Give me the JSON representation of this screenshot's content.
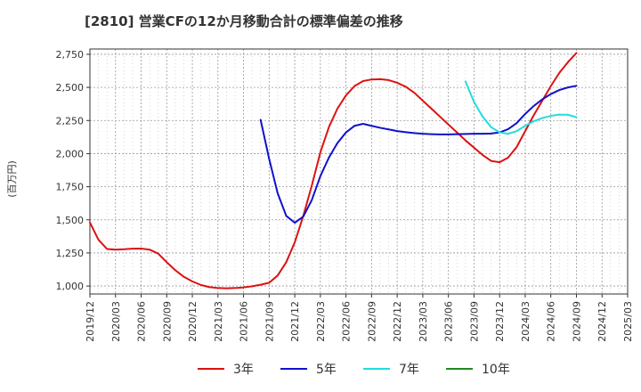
{
  "chart_data": {
    "type": "line",
    "title": "[2810]  営業CFの12か月移動合計の標準偏差の推移",
    "ylabel": "(百万円)",
    "xlabel": "",
    "ylim": [
      940,
      2790
    ],
    "yticks": [
      1000,
      1250,
      1500,
      1750,
      2000,
      2250,
      2500,
      2750
    ],
    "ytick_labels": [
      "1,000",
      "1,250",
      "1,500",
      "1,750",
      "2,000",
      "2,250",
      "2,500",
      "2,750"
    ],
    "x_range": [
      "2019-12",
      "2025-03"
    ],
    "x_ticks": [
      "2019/12",
      "2020/03",
      "2020/06",
      "2020/09",
      "2020/12",
      "2021/03",
      "2021/06",
      "2021/09",
      "2021/12",
      "2022/03",
      "2022/06",
      "2022/09",
      "2022/12",
      "2023/03",
      "2023/06",
      "2023/09",
      "2023/12",
      "2024/03",
      "2024/06",
      "2024/09",
      "2024/12",
      "2025/03"
    ],
    "grid": true,
    "legend": "bottom",
    "series": [
      {
        "name": "3年",
        "color": "#dd1111",
        "points": [
          [
            "2019-12",
            1480
          ],
          [
            "2020-01",
            1350
          ],
          [
            "2020-02",
            1280
          ],
          [
            "2020-03",
            1275
          ],
          [
            "2020-04",
            1278
          ],
          [
            "2020-05",
            1282
          ],
          [
            "2020-06",
            1283
          ],
          [
            "2020-07",
            1275
          ],
          [
            "2020-08",
            1245
          ],
          [
            "2020-09",
            1180
          ],
          [
            "2020-10",
            1120
          ],
          [
            "2020-11",
            1070
          ],
          [
            "2020-12",
            1035
          ],
          [
            "2021-01",
            1008
          ],
          [
            "2021-02",
            992
          ],
          [
            "2021-03",
            985
          ],
          [
            "2021-04",
            983
          ],
          [
            "2021-05",
            985
          ],
          [
            "2021-06",
            990
          ],
          [
            "2021-07",
            998
          ],
          [
            "2021-08",
            1010
          ],
          [
            "2021-09",
            1025
          ],
          [
            "2021-10",
            1080
          ],
          [
            "2021-11",
            1180
          ],
          [
            "2021-12",
            1330
          ],
          [
            "2022-01",
            1530
          ],
          [
            "2022-02",
            1760
          ],
          [
            "2022-03",
            2010
          ],
          [
            "2022-04",
            2200
          ],
          [
            "2022-05",
            2340
          ],
          [
            "2022-06",
            2440
          ],
          [
            "2022-07",
            2510
          ],
          [
            "2022-08",
            2548
          ],
          [
            "2022-09",
            2560
          ],
          [
            "2022-10",
            2562
          ],
          [
            "2022-11",
            2555
          ],
          [
            "2022-12",
            2535
          ],
          [
            "2023-01",
            2505
          ],
          [
            "2023-02",
            2460
          ],
          [
            "2023-03",
            2400
          ],
          [
            "2023-04",
            2340
          ],
          [
            "2023-05",
            2280
          ],
          [
            "2023-06",
            2220
          ],
          [
            "2023-07",
            2160
          ],
          [
            "2023-08",
            2100
          ],
          [
            "2023-09",
            2045
          ],
          [
            "2023-10",
            1990
          ],
          [
            "2023-11",
            1945
          ],
          [
            "2023-12",
            1935
          ],
          [
            "2024-01",
            1970
          ],
          [
            "2024-02",
            2050
          ],
          [
            "2024-03",
            2170
          ],
          [
            "2024-04",
            2290
          ],
          [
            "2024-05",
            2400
          ],
          [
            "2024-06",
            2510
          ],
          [
            "2024-07",
            2610
          ],
          [
            "2024-08",
            2690
          ],
          [
            "2024-09",
            2760
          ]
        ]
      },
      {
        "name": "5年",
        "color": "#1111cc",
        "points": [
          [
            "2021-08",
            2255
          ],
          [
            "2021-09",
            1960
          ],
          [
            "2021-10",
            1700
          ],
          [
            "2021-11",
            1530
          ],
          [
            "2021-12",
            1478
          ],
          [
            "2022-01",
            1525
          ],
          [
            "2022-02",
            1650
          ],
          [
            "2022-03",
            1830
          ],
          [
            "2022-04",
            1970
          ],
          [
            "2022-05",
            2080
          ],
          [
            "2022-06",
            2160
          ],
          [
            "2022-07",
            2210
          ],
          [
            "2022-08",
            2225
          ],
          [
            "2022-09",
            2210
          ],
          [
            "2022-10",
            2195
          ],
          [
            "2022-11",
            2183
          ],
          [
            "2022-12",
            2170
          ],
          [
            "2023-01",
            2162
          ],
          [
            "2023-02",
            2155
          ],
          [
            "2023-03",
            2150
          ],
          [
            "2023-04",
            2147
          ],
          [
            "2023-05",
            2145
          ],
          [
            "2023-06",
            2145
          ],
          [
            "2023-07",
            2147
          ],
          [
            "2023-08",
            2148
          ],
          [
            "2023-09",
            2150
          ],
          [
            "2023-10",
            2150
          ],
          [
            "2023-11",
            2152
          ],
          [
            "2023-12",
            2160
          ],
          [
            "2024-01",
            2185
          ],
          [
            "2024-02",
            2230
          ],
          [
            "2024-03",
            2300
          ],
          [
            "2024-04",
            2360
          ],
          [
            "2024-05",
            2410
          ],
          [
            "2024-06",
            2450
          ],
          [
            "2024-07",
            2480
          ],
          [
            "2024-08",
            2500
          ],
          [
            "2024-09",
            2512
          ]
        ]
      },
      {
        "name": "7年",
        "color": "#22dddd",
        "points": [
          [
            "2023-08",
            2545
          ],
          [
            "2023-09",
            2390
          ],
          [
            "2023-10",
            2280
          ],
          [
            "2023-11",
            2200
          ],
          [
            "2023-12",
            2160
          ],
          [
            "2024-01",
            2150
          ],
          [
            "2024-02",
            2170
          ],
          [
            "2024-03",
            2210
          ],
          [
            "2024-04",
            2245
          ],
          [
            "2024-05",
            2268
          ],
          [
            "2024-06",
            2285
          ],
          [
            "2024-07",
            2295
          ],
          [
            "2024-08",
            2293
          ],
          [
            "2024-09",
            2275
          ]
        ]
      },
      {
        "name": "10年",
        "color": "#228822",
        "points": []
      }
    ]
  }
}
